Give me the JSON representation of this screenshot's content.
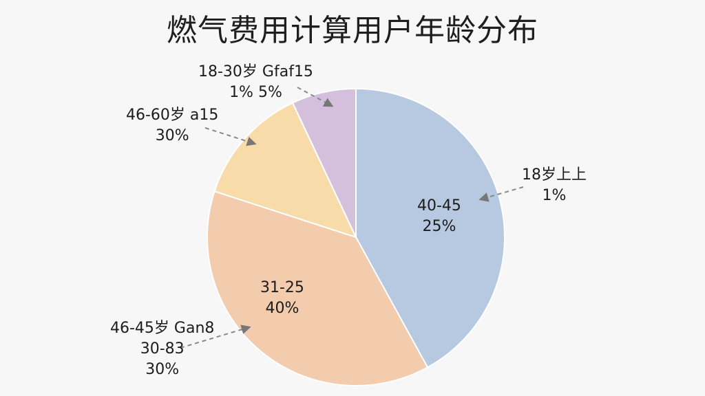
{
  "chart_data": {
    "type": "pie",
    "title": "燃气费用计算用户年龄分布",
    "slices": [
      {
        "id": "blue",
        "value": 42,
        "color": "#b7c9e0"
      },
      {
        "id": "peach",
        "value": 38,
        "color": "#f3cbad"
      },
      {
        "id": "yellow",
        "value": 13,
        "color": "#f7dcaa"
      },
      {
        "id": "purple",
        "value": 7,
        "color": "#d4c0dc"
      }
    ],
    "labels": [
      {
        "id": "lbl-18-30",
        "lines": [
          "18-30岁 Gfaf15",
          "1%     5%"
        ]
      },
      {
        "id": "lbl-46-60",
        "lines": [
          "46-60岁 a15",
          "30%"
        ]
      },
      {
        "id": "lbl-18-above",
        "lines": [
          "18岁上上",
          "1%"
        ]
      },
      {
        "id": "lbl-40-45",
        "lines": [
          "40-45",
          "25%"
        ]
      },
      {
        "id": "lbl-31-25",
        "lines": [
          "31-25",
          "40%"
        ]
      },
      {
        "id": "lbl-46-45",
        "lines": [
          "46-45岁 Gan8",
          "30-83",
          "30%"
        ]
      }
    ]
  }
}
